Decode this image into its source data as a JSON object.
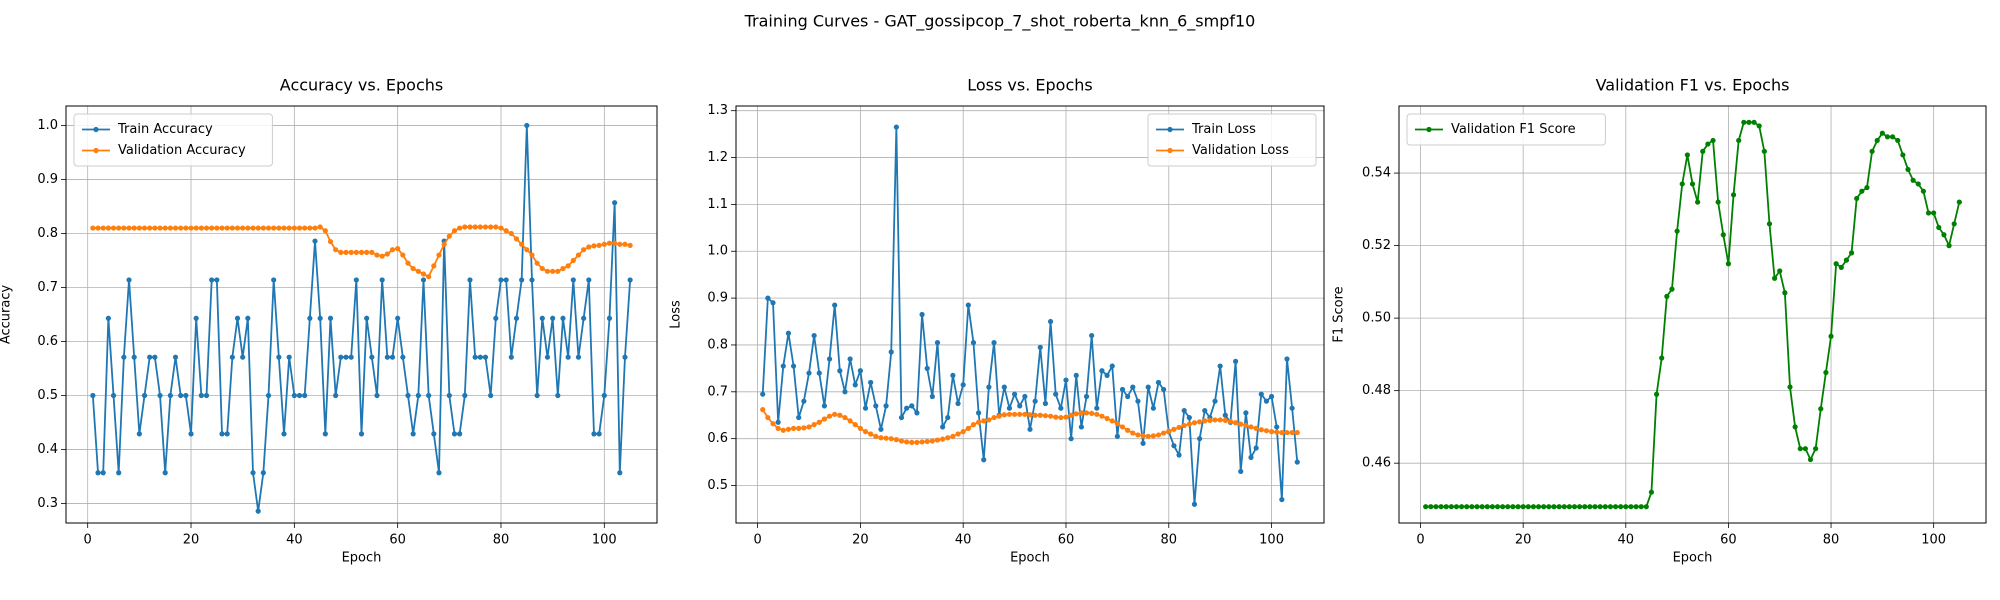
{
  "title": "Training Curves - GAT_gossipcop_7_shot_roberta_knn_6_smpf10",
  "chart_data": [
    {
      "type": "line",
      "title": "Accuracy vs. Epochs",
      "xlabel": "Epoch",
      "ylabel": "Accuracy",
      "grid": true,
      "legend": "upper left",
      "xlim": [
        -4.2,
        110.2
      ],
      "xticks": [
        0,
        20,
        40,
        60,
        80,
        100
      ],
      "ylim": [
        0.264,
        1.036
      ],
      "yticks": [
        0.3,
        0.4,
        0.5,
        0.6,
        0.7,
        0.8,
        0.9,
        {
          "value": 1,
          "label": "1.0"
        }
      ],
      "x": [
        1,
        2,
        3,
        4,
        5,
        6,
        7,
        8,
        9,
        10,
        11,
        12,
        13,
        14,
        15,
        16,
        17,
        18,
        19,
        20,
        21,
        22,
        23,
        24,
        25,
        26,
        27,
        28,
        29,
        30,
        31,
        32,
        33,
        34,
        35,
        36,
        37,
        38,
        39,
        40,
        41,
        42,
        43,
        44,
        45,
        46,
        47,
        48,
        49,
        50,
        51,
        52,
        53,
        54,
        55,
        56,
        57,
        58,
        59,
        60,
        61,
        62,
        63,
        64,
        65,
        66,
        67,
        68,
        69,
        70,
        71,
        72,
        73,
        74,
        75,
        76,
        77,
        78,
        79,
        80,
        81,
        82,
        83,
        84,
        85,
        86,
        87,
        88,
        89,
        90,
        91,
        92,
        93,
        94,
        95,
        96,
        97,
        98,
        99,
        100,
        101,
        102,
        103,
        104,
        105
      ],
      "series": [
        {
          "name": "Train Accuracy",
          "color": "#1f77b4",
          "values": [
            0.5,
            0.357,
            0.357,
            0.643,
            0.5,
            0.357,
            0.571,
            0.714,
            0.571,
            0.429,
            0.5,
            0.571,
            0.571,
            0.5,
            0.357,
            0.5,
            0.571,
            0.5,
            0.5,
            0.429,
            0.643,
            0.5,
            0.5,
            0.714,
            0.714,
            0.429,
            0.429,
            0.571,
            0.643,
            0.571,
            0.643,
            0.357,
            0.286,
            0.357,
            0.5,
            0.714,
            0.571,
            0.429,
            0.571,
            0.5,
            0.5,
            0.5,
            0.643,
            0.786,
            0.643,
            0.429,
            0.643,
            0.5,
            0.571,
            0.571,
            0.571,
            0.714,
            0.429,
            0.643,
            0.571,
            0.5,
            0.714,
            0.571,
            0.571,
            0.643,
            0.571,
            0.5,
            0.429,
            0.5,
            0.714,
            0.5,
            0.429,
            0.357,
            0.786,
            0.5,
            0.429,
            0.429,
            0.5,
            0.714,
            0.571,
            0.571,
            0.571,
            0.5,
            0.643,
            0.714,
            0.714,
            0.571,
            0.643,
            0.714,
            1.0,
            0.714,
            0.5,
            0.643,
            0.571,
            0.643,
            0.5,
            0.643,
            0.571,
            0.714,
            0.571,
            0.643,
            0.714,
            0.429,
            0.429,
            0.5,
            0.643,
            0.857,
            0.357,
            0.571,
            0.714
          ]
        },
        {
          "name": "Validation Accuracy",
          "color": "#ff7f0e",
          "values": [
            0.81,
            0.81,
            0.81,
            0.81,
            0.81,
            0.81,
            0.81,
            0.81,
            0.81,
            0.81,
            0.81,
            0.81,
            0.81,
            0.81,
            0.81,
            0.81,
            0.81,
            0.81,
            0.81,
            0.81,
            0.81,
            0.81,
            0.81,
            0.81,
            0.81,
            0.81,
            0.81,
            0.81,
            0.81,
            0.81,
            0.81,
            0.81,
            0.81,
            0.81,
            0.81,
            0.81,
            0.81,
            0.81,
            0.81,
            0.81,
            0.81,
            0.81,
            0.81,
            0.81,
            0.812,
            0.805,
            0.785,
            0.77,
            0.765,
            0.765,
            0.765,
            0.765,
            0.765,
            0.765,
            0.765,
            0.76,
            0.758,
            0.762,
            0.77,
            0.772,
            0.76,
            0.745,
            0.735,
            0.73,
            0.725,
            0.72,
            0.74,
            0.76,
            0.78,
            0.795,
            0.805,
            0.81,
            0.812,
            0.812,
            0.812,
            0.812,
            0.812,
            0.812,
            0.812,
            0.81,
            0.805,
            0.8,
            0.79,
            0.78,
            0.77,
            0.76,
            0.745,
            0.735,
            0.73,
            0.73,
            0.73,
            0.735,
            0.74,
            0.75,
            0.76,
            0.77,
            0.775,
            0.777,
            0.778,
            0.78,
            0.782,
            0.782,
            0.78,
            0.78,
            0.778
          ]
        }
      ]
    },
    {
      "type": "line",
      "title": "Loss vs. Epochs",
      "xlabel": "Epoch",
      "ylabel": "Loss",
      "grid": true,
      "legend": "upper right",
      "xlim": [
        -4.2,
        110.2
      ],
      "xticks": [
        0,
        20,
        40,
        60,
        80,
        100
      ],
      "ylim": [
        0.42,
        1.31
      ],
      "yticks": [
        0.5,
        0.6,
        0.7,
        0.8,
        0.9,
        {
          "value": 1,
          "label": "1.0"
        },
        1.1,
        1.2,
        1.3
      ],
      "x": [
        1,
        2,
        3,
        4,
        5,
        6,
        7,
        8,
        9,
        10,
        11,
        12,
        13,
        14,
        15,
        16,
        17,
        18,
        19,
        20,
        21,
        22,
        23,
        24,
        25,
        26,
        27,
        28,
        29,
        30,
        31,
        32,
        33,
        34,
        35,
        36,
        37,
        38,
        39,
        40,
        41,
        42,
        43,
        44,
        45,
        46,
        47,
        48,
        49,
        50,
        51,
        52,
        53,
        54,
        55,
        56,
        57,
        58,
        59,
        60,
        61,
        62,
        63,
        64,
        65,
        66,
        67,
        68,
        69,
        70,
        71,
        72,
        73,
        74,
        75,
        76,
        77,
        78,
        79,
        80,
        81,
        82,
        83,
        84,
        85,
        86,
        87,
        88,
        89,
        90,
        91,
        92,
        93,
        94,
        95,
        96,
        97,
        98,
        99,
        100,
        101,
        102,
        103,
        104,
        105
      ],
      "series": [
        {
          "name": "Train Loss",
          "color": "#1f77b4",
          "values": [
            0.695,
            0.9,
            0.89,
            0.635,
            0.755,
            0.825,
            0.755,
            0.645,
            0.68,
            0.74,
            0.82,
            0.74,
            0.67,
            0.77,
            0.885,
            0.745,
            0.7,
            0.77,
            0.715,
            0.745,
            0.665,
            0.72,
            0.67,
            0.62,
            0.67,
            0.785,
            1.265,
            0.645,
            0.665,
            0.67,
            0.655,
            0.865,
            0.75,
            0.69,
            0.805,
            0.625,
            0.645,
            0.735,
            0.675,
            0.715,
            0.885,
            0.805,
            0.655,
            0.555,
            0.71,
            0.805,
            0.65,
            0.71,
            0.665,
            0.695,
            0.67,
            0.69,
            0.62,
            0.68,
            0.795,
            0.675,
            0.85,
            0.695,
            0.665,
            0.725,
            0.6,
            0.735,
            0.625,
            0.69,
            0.82,
            0.665,
            0.745,
            0.735,
            0.755,
            0.605,
            0.705,
            0.69,
            0.71,
            0.68,
            0.59,
            0.71,
            0.665,
            0.72,
            0.705,
            0.615,
            0.585,
            0.565,
            0.66,
            0.645,
            0.46,
            0.6,
            0.66,
            0.645,
            0.68,
            0.755,
            0.65,
            0.635,
            0.765,
            0.53,
            0.655,
            0.56,
            0.58,
            0.695,
            0.68,
            0.69,
            0.625,
            0.47,
            0.77,
            0.665,
            0.55
          ]
        },
        {
          "name": "Validation Loss",
          "color": "#ff7f0e",
          "values": [
            0.662,
            0.645,
            0.632,
            0.622,
            0.618,
            0.62,
            0.622,
            0.622,
            0.623,
            0.625,
            0.63,
            0.635,
            0.642,
            0.648,
            0.652,
            0.65,
            0.645,
            0.638,
            0.63,
            0.622,
            0.615,
            0.61,
            0.605,
            0.602,
            0.601,
            0.6,
            0.598,
            0.595,
            0.593,
            0.592,
            0.592,
            0.593,
            0.594,
            0.595,
            0.597,
            0.599,
            0.602,
            0.605,
            0.61,
            0.615,
            0.622,
            0.63,
            0.635,
            0.638,
            0.64,
            0.645,
            0.648,
            0.651,
            0.652,
            0.652,
            0.652,
            0.652,
            0.651,
            0.65,
            0.65,
            0.649,
            0.648,
            0.646,
            0.645,
            0.646,
            0.65,
            0.653,
            0.655,
            0.655,
            0.654,
            0.652,
            0.648,
            0.643,
            0.638,
            0.632,
            0.625,
            0.618,
            0.612,
            0.608,
            0.606,
            0.605,
            0.606,
            0.608,
            0.612,
            0.616,
            0.62,
            0.624,
            0.628,
            0.631,
            0.634,
            0.636,
            0.638,
            0.639,
            0.64,
            0.64,
            0.639,
            0.637,
            0.634,
            0.631,
            0.628,
            0.625,
            0.622,
            0.619,
            0.617,
            0.615,
            0.614,
            0.613,
            0.613,
            0.613,
            0.613
          ]
        }
      ]
    },
    {
      "type": "line",
      "title": "Validation F1 vs. Epochs",
      "xlabel": "Epoch",
      "ylabel": "F1 Score",
      "grid": true,
      "legend": "upper left",
      "xlim": [
        -4.2,
        110.2
      ],
      "xticks": [
        0,
        20,
        40,
        60,
        80,
        100
      ],
      "ylim": [
        0.4435,
        0.5585
      ],
      "yticks": [
        0.46,
        0.48,
        {
          "value": 0.5,
          "label": "0.50"
        },
        0.52,
        0.54
      ],
      "x": [
        1,
        2,
        3,
        4,
        5,
        6,
        7,
        8,
        9,
        10,
        11,
        12,
        13,
        14,
        15,
        16,
        17,
        18,
        19,
        20,
        21,
        22,
        23,
        24,
        25,
        26,
        27,
        28,
        29,
        30,
        31,
        32,
        33,
        34,
        35,
        36,
        37,
        38,
        39,
        40,
        41,
        42,
        43,
        44,
        45,
        46,
        47,
        48,
        49,
        50,
        51,
        52,
        53,
        54,
        55,
        56,
        57,
        58,
        59,
        60,
        61,
        62,
        63,
        64,
        65,
        66,
        67,
        68,
        69,
        70,
        71,
        72,
        73,
        74,
        75,
        76,
        77,
        78,
        79,
        80,
        81,
        82,
        83,
        84,
        85,
        86,
        87,
        88,
        89,
        90,
        91,
        92,
        93,
        94,
        95,
        96,
        97,
        98,
        99,
        100,
        101,
        102,
        103,
        104,
        105
      ],
      "series": [
        {
          "name": "Validation F1 Score",
          "color": "#008000",
          "values": [
            0.448,
            0.448,
            0.448,
            0.448,
            0.448,
            0.448,
            0.448,
            0.448,
            0.448,
            0.448,
            0.448,
            0.448,
            0.448,
            0.448,
            0.448,
            0.448,
            0.448,
            0.448,
            0.448,
            0.448,
            0.448,
            0.448,
            0.448,
            0.448,
            0.448,
            0.448,
            0.448,
            0.448,
            0.448,
            0.448,
            0.448,
            0.448,
            0.448,
            0.448,
            0.448,
            0.448,
            0.448,
            0.448,
            0.448,
            0.448,
            0.448,
            0.448,
            0.448,
            0.448,
            0.452,
            0.479,
            0.489,
            0.506,
            0.508,
            0.524,
            0.537,
            0.545,
            0.537,
            0.532,
            0.546,
            0.548,
            0.549,
            0.532,
            0.523,
            0.515,
            0.534,
            0.549,
            0.554,
            0.554,
            0.554,
            0.553,
            0.546,
            0.526,
            0.511,
            0.513,
            0.507,
            0.481,
            0.47,
            0.464,
            0.464,
            0.461,
            0.464,
            0.475,
            0.485,
            0.495,
            0.515,
            0.514,
            0.516,
            0.518,
            0.533,
            0.535,
            0.536,
            0.546,
            0.549,
            0.551,
            0.55,
            0.55,
            0.549,
            0.545,
            0.541,
            0.538,
            0.537,
            0.535,
            0.529,
            0.529,
            0.525,
            0.523,
            0.52,
            0.526,
            0.532
          ]
        }
      ]
    }
  ]
}
